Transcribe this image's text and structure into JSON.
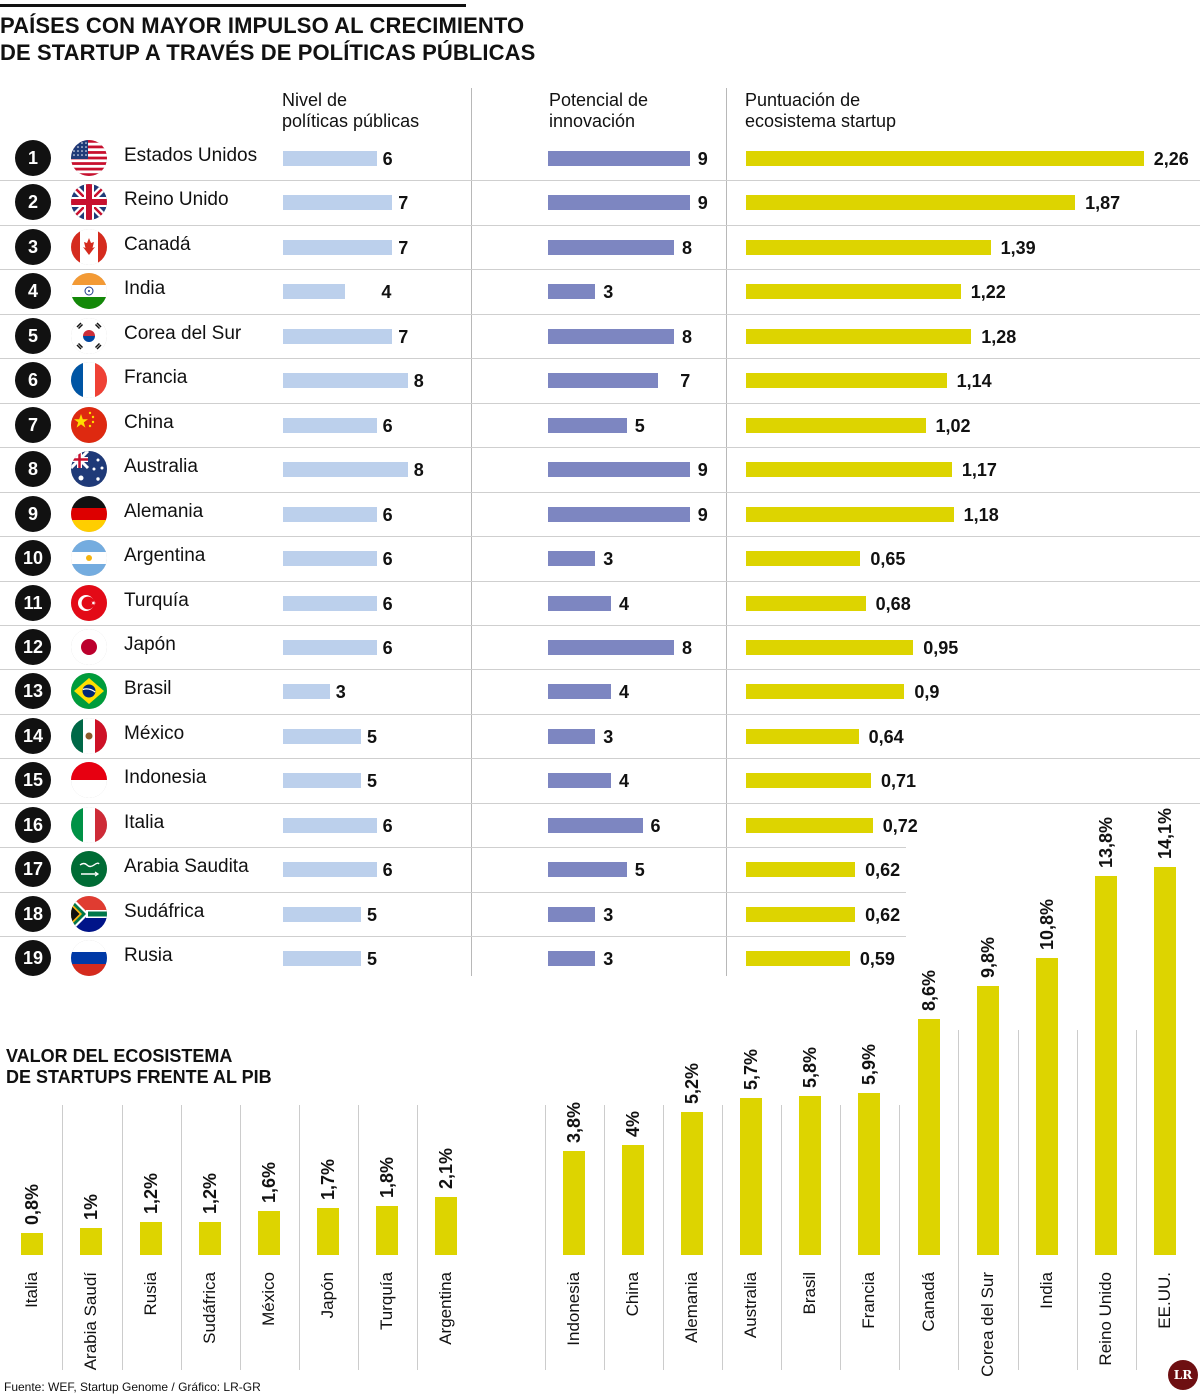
{
  "title_lines": [
    "PAÍSES CON MAYOR IMPULSO AL CRECIMIENTO",
    "DE STARTUP A TRAVÉS DE POLÍTICAS PÚBLICAS"
  ],
  "columns": {
    "policy": [
      "Nivel de",
      "políticas públicas"
    ],
    "innovation": [
      "Potencial de",
      "innovación"
    ],
    "ecosystem": [
      "Puntuación de",
      "ecosistema startup"
    ]
  },
  "colors": {
    "policy": "#bcd0ec",
    "innovation": "#7d86c1",
    "ecosystem": "#ddd400",
    "rank": "#111111"
  },
  "rows": [
    {
      "rank": "1",
      "country": "Estados Unidos",
      "flag": "usa-flag-icon",
      "policy": 6,
      "innovation": 9,
      "ecosystem": "2,26"
    },
    {
      "rank": "2",
      "country": "Reino Unido",
      "flag": "uk-flag-icon",
      "policy": 7,
      "innovation": 9,
      "ecosystem": "1,87"
    },
    {
      "rank": "3",
      "country": "Canadá",
      "flag": "canada-flag-icon",
      "policy": 7,
      "innovation": 8,
      "ecosystem": "1,39"
    },
    {
      "rank": "4",
      "country": "India",
      "flag": "india-flag-icon",
      "policy": 4,
      "innovation": 3,
      "ecosystem": "1,22"
    },
    {
      "rank": "5",
      "country": "Corea del Sur",
      "flag": "south-korea-flag-icon",
      "policy": 7,
      "innovation": 8,
      "ecosystem": "1,28"
    },
    {
      "rank": "6",
      "country": "Francia",
      "flag": "france-flag-icon",
      "policy": 8,
      "innovation": 7,
      "ecosystem": "1,14"
    },
    {
      "rank": "7",
      "country": "China",
      "flag": "china-flag-icon",
      "policy": 6,
      "innovation": 5,
      "ecosystem": "1,02"
    },
    {
      "rank": "8",
      "country": "Australia",
      "flag": "australia-flag-icon",
      "policy": 8,
      "innovation": 9,
      "ecosystem": "1,17"
    },
    {
      "rank": "9",
      "country": "Alemania",
      "flag": "germany-flag-icon",
      "policy": 6,
      "innovation": 9,
      "ecosystem": "1,18"
    },
    {
      "rank": "10",
      "country": "Argentina",
      "flag": "argentina-flag-icon",
      "policy": 6,
      "innovation": 3,
      "ecosystem": "0,65"
    },
    {
      "rank": "11",
      "country": "Turquía",
      "flag": "turkey-flag-icon",
      "policy": 6,
      "innovation": 4,
      "ecosystem": "0,68"
    },
    {
      "rank": "12",
      "country": "Japón",
      "flag": "japan-flag-icon",
      "policy": 6,
      "innovation": 8,
      "ecosystem": "0,95"
    },
    {
      "rank": "13",
      "country": "Brasil",
      "flag": "brazil-flag-icon",
      "policy": 3,
      "innovation": 4,
      "ecosystem": "0,9"
    },
    {
      "rank": "14",
      "country": "México",
      "flag": "mexico-flag-icon",
      "policy": 5,
      "innovation": 3,
      "ecosystem": "0,64"
    },
    {
      "rank": "15",
      "country": "Indonesia",
      "flag": "indonesia-flag-icon",
      "policy": 5,
      "innovation": 4,
      "ecosystem": "0,71"
    },
    {
      "rank": "16",
      "country": "Italia",
      "flag": "italy-flag-icon",
      "policy": 6,
      "innovation": 6,
      "ecosystem": "0,72"
    },
    {
      "rank": "17",
      "country": "Arabia Saudita",
      "flag": "saudi-arabia-flag-icon",
      "policy": 6,
      "innovation": 5,
      "ecosystem": "0,62"
    },
    {
      "rank": "18",
      "country": "Sudáfrica",
      "flag": "south-africa-flag-icon",
      "policy": 5,
      "innovation": 3,
      "ecosystem": "0,62"
    },
    {
      "rank": "19",
      "country": "Rusia",
      "flag": "russia-flag-icon",
      "policy": 5,
      "innovation": 3,
      "ecosystem": "0,59"
    }
  ],
  "gdp_title_lines": [
    "VALOR DEL ECOSISTEMA",
    "DE STARTUPS FRENTE AL PIB"
  ],
  "gdp_bars": [
    {
      "country": "Italia",
      "label": "0,8%",
      "value": 0.8
    },
    {
      "country": "Arabia Saudí",
      "label": "1%",
      "value": 1.0
    },
    {
      "country": "Rusia",
      "label": "1,2%",
      "value": 1.2
    },
    {
      "country": "Sudáfrica",
      "label": "1,2%",
      "value": 1.2
    },
    {
      "country": "México",
      "label": "1,6%",
      "value": 1.6
    },
    {
      "country": "Japón",
      "label": "1,7%",
      "value": 1.7
    },
    {
      "country": "Turquía",
      "label": "1,8%",
      "value": 1.8
    },
    {
      "country": "Argentina",
      "label": "2,1%",
      "value": 2.1
    },
    {
      "country": "Indonesia",
      "label": "3,8%",
      "value": 3.8
    },
    {
      "country": "China",
      "label": "4%",
      "value": 4.0
    },
    {
      "country": "Alemania",
      "label": "5,2%",
      "value": 5.2
    },
    {
      "country": "Australia",
      "label": "5,7%",
      "value": 5.7
    },
    {
      "country": "Brasil",
      "label": "5,8%",
      "value": 5.8
    },
    {
      "country": "Francia",
      "label": "5,9%",
      "value": 5.9
    },
    {
      "country": "Canadá",
      "label": "8,6%",
      "value": 8.6
    },
    {
      "country": "Corea del Sur",
      "label": "9,8%",
      "value": 9.8
    },
    {
      "country": "India",
      "label": "10,8%",
      "value": 10.8
    },
    {
      "country": "Reino Unido",
      "label": "13,8%",
      "value": 13.8
    },
    {
      "country": "EE.UU.",
      "label": "14,1%",
      "value": 14.1
    }
  ],
  "source": "Fuente: WEF, Startup Genome / Gráfico: LR-GR",
  "logo": "LR",
  "chart_data": [
    {
      "type": "bar",
      "categories": [
        "Estados Unidos",
        "Reino Unido",
        "Canadá",
        "India",
        "Corea del Sur",
        "Francia",
        "China",
        "Australia",
        "Alemania",
        "Argentina",
        "Turquía",
        "Japón",
        "Brasil",
        "México",
        "Indonesia",
        "Italia",
        "Arabia Saudita",
        "Sudáfrica",
        "Rusia"
      ],
      "series": [
        {
          "name": "Nivel de políticas públicas",
          "values": [
            6,
            7,
            7,
            4,
            7,
            8,
            6,
            8,
            6,
            6,
            6,
            6,
            3,
            5,
            5,
            6,
            6,
            5,
            5
          ]
        },
        {
          "name": "Potencial de innovación",
          "values": [
            9,
            9,
            8,
            3,
            8,
            7,
            5,
            9,
            9,
            3,
            4,
            8,
            4,
            3,
            4,
            6,
            5,
            3,
            3
          ]
        },
        {
          "name": "Puntuación de ecosistema startup",
          "values": [
            2.26,
            1.87,
            1.39,
            1.22,
            1.28,
            1.14,
            1.02,
            1.17,
            1.18,
            0.65,
            0.68,
            0.95,
            0.9,
            0.64,
            0.71,
            0.72,
            0.62,
            0.62,
            0.59
          ]
        }
      ],
      "title": "PAÍSES CON MAYOR IMPULSO AL CRECIMIENTO DE STARTUP A TRAVÉS DE POLÍTICAS PÚBLICAS",
      "orientation": "horizontal",
      "grid": false
    },
    {
      "type": "bar",
      "categories": [
        "Italia",
        "Arabia Saudí",
        "Rusia",
        "Sudáfrica",
        "México",
        "Japón",
        "Turquía",
        "Argentina",
        "Indonesia",
        "China",
        "Alemania",
        "Australia",
        "Brasil",
        "Francia",
        "Canadá",
        "Corea del Sur",
        "India",
        "Reino Unido",
        "EE.UU."
      ],
      "values": [
        0.8,
        1.0,
        1.2,
        1.2,
        1.6,
        1.7,
        1.8,
        2.1,
        3.8,
        4.0,
        5.2,
        5.7,
        5.8,
        5.9,
        8.6,
        9.8,
        10.8,
        13.8,
        14.1
      ],
      "title": "VALOR DEL ECOSISTEMA DE STARTUPS FRENTE AL PIB",
      "orientation": "vertical",
      "grid": false
    }
  ]
}
